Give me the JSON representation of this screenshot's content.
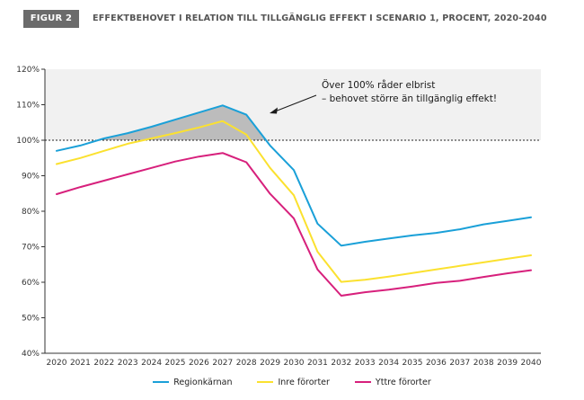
{
  "figure": {
    "badge": "FIGUR 2",
    "title": "EFFEKTBEHOVET I RELATION TILL TILLGÄNGLIG EFFEKT I SCENARIO 1, PROCENT, 2020-2040"
  },
  "chart_data": {
    "type": "line",
    "title": "EFFEKTBEHOVET I RELATION TILL TILLGÄNGLIG EFFEKT I SCENARIO 1, PROCENT, 2020-2040",
    "xlabel": "",
    "ylabel": "",
    "x": [
      "2020",
      "2021",
      "2022",
      "2023",
      "2024",
      "2025",
      "2026",
      "2027",
      "2028",
      "2029",
      "2030",
      "2031",
      "2032",
      "2033",
      "2034",
      "2035",
      "2036",
      "2037",
      "2038",
      "2039",
      "2040"
    ],
    "ylim": [
      40,
      120
    ],
    "y_ticks": [
      40,
      50,
      60,
      70,
      80,
      90,
      100,
      110,
      120
    ],
    "y_tick_labels": [
      "40%",
      "50%",
      "60%",
      "70%",
      "80%",
      "90%",
      "100%",
      "110%",
      "120%"
    ],
    "reference_line": 100,
    "shaded_band": [
      100,
      120
    ],
    "grid": false,
    "legend_position": "bottom",
    "series": [
      {
        "name": "Regionkärnan",
        "color": "#1aa0d8",
        "values": [
          97,
          98.5,
          100.5,
          102,
          103.8,
          105.8,
          107.8,
          109.8,
          107.2,
          98.5,
          91.6,
          76.5,
          70.3,
          71.4,
          72.3,
          73.2,
          73.9,
          74.9,
          76.3,
          77.3,
          78.3
        ]
      },
      {
        "name": "Inre förorter",
        "color": "#fbe12f",
        "values": [
          93.3,
          95,
          97,
          99,
          100.5,
          102,
          103.6,
          105.4,
          101.6,
          92.2,
          84.5,
          68.6,
          60.1,
          60.7,
          61.6,
          62.6,
          63.6,
          64.6,
          65.6,
          66.6,
          67.6
        ]
      },
      {
        "name": "Yttre förorter",
        "color": "#d7207c",
        "values": [
          84.8,
          86.8,
          88.6,
          90.4,
          92.2,
          94,
          95.4,
          96.4,
          93.8,
          84.9,
          78,
          63.6,
          56.2,
          57.2,
          57.9,
          58.8,
          59.8,
          60.4,
          61.5,
          62.5,
          63.4
        ]
      }
    ],
    "annotations": [
      {
        "text_line1": "Över 100% råder elbrist",
        "text_line2": "– behovet större än tillgänglig  effekt!"
      }
    ]
  }
}
